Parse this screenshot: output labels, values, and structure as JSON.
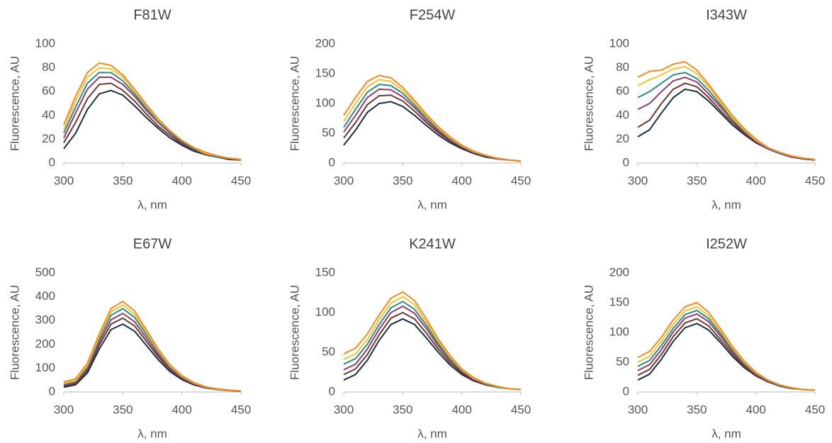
{
  "chart_data": [
    {
      "type": "line",
      "title": "F81W",
      "xlabel": "λ, nm",
      "ylabel": "Fluorescence, AU",
      "x": [
        300,
        310,
        320,
        330,
        340,
        350,
        360,
        370,
        380,
        390,
        400,
        410,
        420,
        430,
        440,
        450
      ],
      "xlim": [
        300,
        450
      ],
      "xticks": [
        300,
        350,
        400,
        450
      ],
      "ylim": [
        0,
        100
      ],
      "yticks": [
        0,
        20,
        40,
        60,
        80,
        100
      ],
      "series": [
        {
          "color": "#1c2b45",
          "values": [
            12,
            25,
            45,
            58,
            61,
            57,
            48,
            38,
            29,
            21,
            15,
            10,
            7,
            5,
            3,
            2.5
          ]
        },
        {
          "color": "#6b3a2a",
          "values": [
            17,
            34,
            54,
            66,
            67,
            61,
            52,
            41,
            31,
            23,
            16,
            11,
            7,
            5,
            3.5,
            2.5
          ]
        },
        {
          "color": "#8e3b6e",
          "values": [
            21,
            42,
            62,
            72,
            72,
            66,
            56,
            44,
            34,
            25,
            17,
            12,
            8,
            5,
            4,
            3
          ]
        },
        {
          "color": "#2a8a88",
          "values": [
            25,
            47,
            67,
            76,
            76,
            69,
            58,
            46,
            35,
            26,
            18,
            12,
            8,
            5,
            4,
            3
          ]
        },
        {
          "color": "#f2c230",
          "values": [
            28,
            52,
            72,
            80,
            79,
            72,
            60,
            48,
            36,
            27,
            19,
            13,
            8,
            6,
            4,
            3
          ]
        },
        {
          "color": "#f08a24",
          "values": [
            32,
            56,
            76,
            84,
            82,
            74,
            62,
            49,
            37,
            27,
            19,
            13,
            9,
            6,
            4,
            3
          ]
        }
      ]
    },
    {
      "type": "line",
      "title": "F254W",
      "xlabel": "λ, nm",
      "ylabel": "Fluorescence, AU",
      "x": [
        300,
        310,
        320,
        330,
        340,
        350,
        360,
        370,
        380,
        390,
        400,
        410,
        420,
        430,
        440,
        450
      ],
      "xlim": [
        300,
        450
      ],
      "xticks": [
        300,
        350,
        400,
        450
      ],
      "ylim": [
        0,
        200
      ],
      "yticks": [
        0,
        50,
        100,
        150,
        200
      ],
      "series": [
        {
          "color": "#1c2b45",
          "values": [
            30,
            55,
            85,
            100,
            103,
            95,
            80,
            63,
            47,
            34,
            24,
            16,
            10,
            7,
            5,
            3
          ]
        },
        {
          "color": "#6b3a2a",
          "values": [
            42,
            68,
            98,
            113,
            114,
            104,
            87,
            68,
            51,
            37,
            26,
            17,
            11,
            7,
            5,
            3
          ]
        },
        {
          "color": "#8e3b6e",
          "values": [
            52,
            80,
            110,
            124,
            123,
            111,
            93,
            72,
            54,
            39,
            27,
            18,
            12,
            8,
            5,
            3
          ]
        },
        {
          "color": "#2a8a88",
          "values": [
            60,
            90,
            119,
            132,
            130,
            117,
            97,
            76,
            57,
            41,
            28,
            19,
            12,
            8,
            5,
            3
          ]
        },
        {
          "color": "#f2c230",
          "values": [
            70,
            100,
            128,
            140,
            137,
            122,
            101,
            79,
            59,
            42,
            29,
            19,
            13,
            8,
            5,
            3
          ]
        },
        {
          "color": "#f08a24",
          "values": [
            80,
            110,
            137,
            147,
            143,
            127,
            105,
            82,
            61,
            44,
            30,
            20,
            13,
            8,
            5,
            3
          ]
        }
      ]
    },
    {
      "type": "line",
      "title": "I343W",
      "xlabel": "λ, nm",
      "ylabel": "Fluorescence, AU",
      "x": [
        300,
        310,
        320,
        330,
        340,
        350,
        360,
        370,
        380,
        390,
        400,
        410,
        420,
        430,
        440,
        450
      ],
      "xlim": [
        300,
        450
      ],
      "xticks": [
        300,
        350,
        400,
        450
      ],
      "ylim": [
        0,
        100
      ],
      "yticks": [
        0,
        20,
        40,
        60,
        80,
        100
      ],
      "series": [
        {
          "color": "#1c2b45",
          "values": [
            22,
            28,
            42,
            55,
            62,
            60,
            52,
            42,
            32,
            24,
            17,
            12,
            8,
            5,
            3.5,
            2.5
          ]
        },
        {
          "color": "#6b3a2a",
          "values": [
            30,
            36,
            50,
            62,
            67,
            64,
            55,
            44,
            34,
            25,
            18,
            12,
            8,
            5,
            4,
            3
          ]
        },
        {
          "color": "#8e3b6e",
          "values": [
            45,
            50,
            60,
            69,
            72,
            68,
            58,
            47,
            36,
            26,
            18,
            12,
            8,
            5,
            4,
            3
          ]
        },
        {
          "color": "#2a8a88",
          "values": [
            55,
            60,
            67,
            74,
            76,
            71,
            61,
            49,
            37,
            27,
            19,
            13,
            8,
            6,
            4,
            3
          ]
        },
        {
          "color": "#f2c230",
          "values": [
            65,
            70,
            74,
            79,
            81,
            75,
            64,
            51,
            38,
            28,
            19,
            13,
            9,
            6,
            4,
            3
          ]
        },
        {
          "color": "#f08a24",
          "values": [
            72,
            77,
            78,
            83,
            85,
            78,
            66,
            53,
            40,
            29,
            20,
            13,
            9,
            6,
            4,
            3
          ]
        }
      ]
    },
    {
      "type": "line",
      "title": "E67W",
      "xlabel": "λ, nm",
      "ylabel": "Fluorescence, AU",
      "x": [
        300,
        310,
        320,
        330,
        340,
        350,
        360,
        370,
        380,
        390,
        400,
        410,
        420,
        430,
        440,
        450
      ],
      "xlim": [
        300,
        450
      ],
      "xticks": [
        300,
        350,
        400,
        450
      ],
      "ylim": [
        0,
        500
      ],
      "yticks": [
        0,
        100,
        200,
        300,
        400,
        500
      ],
      "series": [
        {
          "color": "#1c2b45",
          "values": [
            20,
            30,
            80,
            180,
            262,
            285,
            255,
            195,
            135,
            85,
            52,
            30,
            17,
            10,
            6,
            3
          ]
        },
        {
          "color": "#6b3a2a",
          "values": [
            25,
            35,
            90,
            196,
            285,
            310,
            277,
            212,
            147,
            93,
            56,
            33,
            18,
            11,
            6,
            3
          ]
        },
        {
          "color": "#8e3b6e",
          "values": [
            28,
            40,
            98,
            210,
            303,
            330,
            295,
            226,
            156,
            99,
            60,
            35,
            19,
            11,
            7,
            4
          ]
        },
        {
          "color": "#2a8a88",
          "values": [
            32,
            44,
            105,
            222,
            322,
            350,
            313,
            240,
            166,
            105,
            63,
            37,
            20,
            12,
            7,
            4
          ]
        },
        {
          "color": "#f2c230",
          "values": [
            36,
            48,
            112,
            232,
            336,
            365,
            326,
            250,
            173,
            109,
            66,
            38,
            21,
            12,
            7,
            4
          ]
        },
        {
          "color": "#f08a24",
          "values": [
            42,
            55,
            120,
            243,
            350,
            380,
            340,
            260,
            180,
            114,
            69,
            40,
            22,
            13,
            8,
            4
          ]
        }
      ]
    },
    {
      "type": "line",
      "title": "K241W",
      "xlabel": "λ, nm",
      "ylabel": "Fluorescence, AU",
      "x": [
        300,
        310,
        320,
        330,
        340,
        350,
        360,
        370,
        380,
        390,
        400,
        410,
        420,
        430,
        440,
        450
      ],
      "xlim": [
        300,
        450
      ],
      "xticks": [
        300,
        350,
        400,
        450
      ],
      "ylim": [
        0,
        150
      ],
      "yticks": [
        0,
        50,
        100,
        150
      ],
      "series": [
        {
          "color": "#1c2b45",
          "values": [
            15,
            22,
            40,
            65,
            85,
            92,
            85,
            68,
            50,
            34,
            22,
            14,
            9,
            6,
            4,
            3
          ]
        },
        {
          "color": "#6b3a2a",
          "values": [
            22,
            29,
            47,
            72,
            93,
            100,
            92,
            74,
            54,
            37,
            24,
            15,
            9,
            6,
            4,
            3
          ]
        },
        {
          "color": "#8e3b6e",
          "values": [
            28,
            35,
            54,
            79,
            100,
            108,
            99,
            80,
            58,
            40,
            26,
            16,
            10,
            6,
            4,
            3
          ]
        },
        {
          "color": "#2a8a88",
          "values": [
            35,
            42,
            60,
            85,
            106,
            114,
            104,
            84,
            61,
            42,
            27,
            17,
            10,
            6,
            4,
            3
          ]
        },
        {
          "color": "#f2c230",
          "values": [
            41,
            48,
            66,
            91,
            112,
            120,
            110,
            88,
            64,
            44,
            28,
            17,
            11,
            7,
            4,
            3
          ]
        },
        {
          "color": "#f08a24",
          "values": [
            48,
            55,
            73,
            97,
            118,
            126,
            115,
            92,
            67,
            46,
            29,
            18,
            11,
            7,
            4,
            3
          ]
        }
      ]
    },
    {
      "type": "line",
      "title": "I252W",
      "xlabel": "λ, nm",
      "ylabel": "Fluorescence, AU",
      "x": [
        300,
        310,
        320,
        330,
        340,
        350,
        360,
        370,
        380,
        390,
        400,
        410,
        420,
        430,
        440,
        450
      ],
      "xlim": [
        300,
        450
      ],
      "xticks": [
        300,
        350,
        400,
        450
      ],
      "ylim": [
        0,
        200
      ],
      "yticks": [
        0,
        50,
        100,
        150,
        200
      ],
      "series": [
        {
          "color": "#1c2b45",
          "values": [
            20,
            30,
            55,
            85,
            108,
            115,
            104,
            83,
            60,
            41,
            27,
            17,
            10,
            6,
            4,
            3
          ]
        },
        {
          "color": "#6b3a2a",
          "values": [
            28,
            38,
            63,
            93,
            116,
            123,
            111,
            88,
            64,
            43,
            28,
            17,
            11,
            7,
            4,
            3
          ]
        },
        {
          "color": "#8e3b6e",
          "values": [
            36,
            46,
            71,
            101,
            124,
            131,
            118,
            94,
            68,
            46,
            30,
            18,
            11,
            7,
            4,
            3
          ]
        },
        {
          "color": "#2a8a88",
          "values": [
            43,
            53,
            78,
            107,
            130,
            137,
            123,
            98,
            71,
            48,
            31,
            19,
            11,
            7,
            4,
            3
          ]
        },
        {
          "color": "#f2c230",
          "values": [
            50,
            60,
            85,
            114,
            136,
            143,
            128,
            102,
            74,
            50,
            32,
            20,
            12,
            7,
            4,
            3
          ]
        },
        {
          "color": "#f08a24",
          "values": [
            58,
            68,
            92,
            121,
            143,
            150,
            134,
            106,
            77,
            52,
            33,
            20,
            12,
            7,
            4,
            3
          ]
        }
      ]
    }
  ]
}
